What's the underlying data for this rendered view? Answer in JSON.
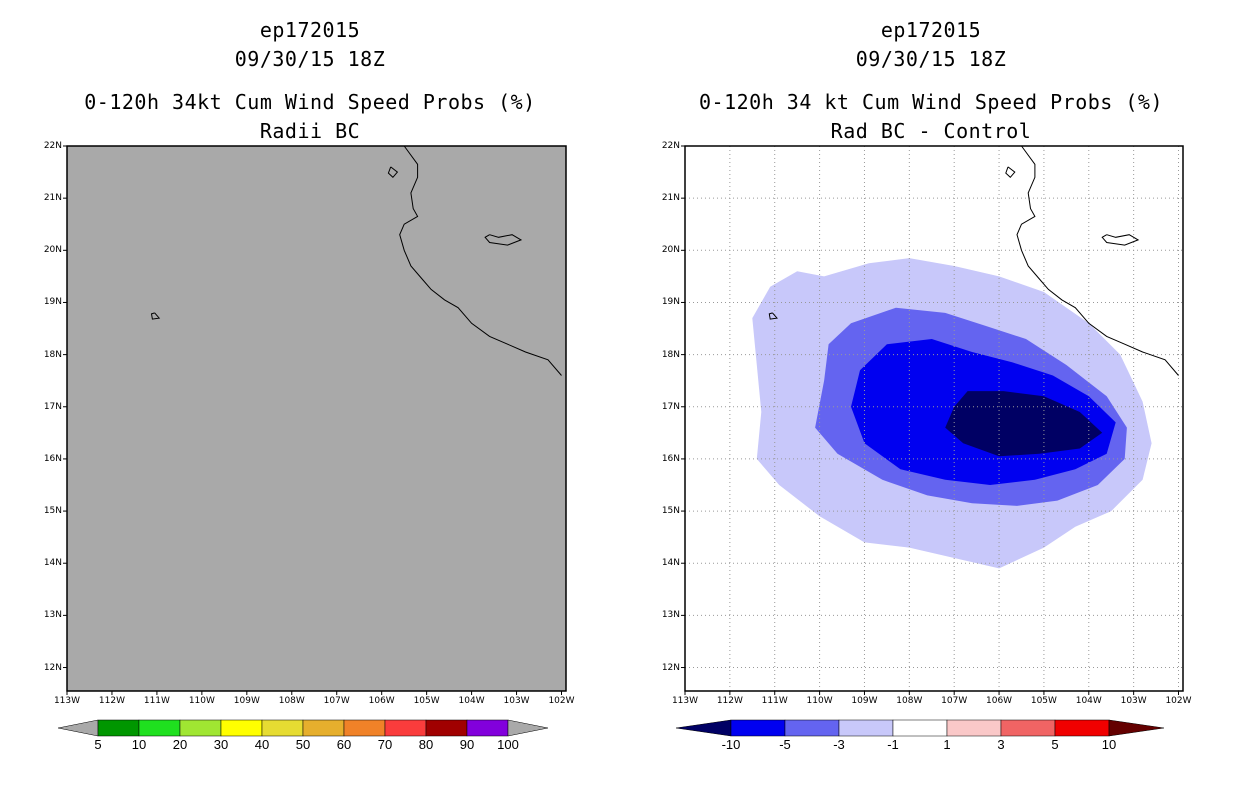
{
  "left_panel": {
    "title_line1": "ep172015",
    "title_line2": "09/30/15 18Z",
    "title_line3": "0-120h 34kt Cum Wind Speed Probs (%)",
    "title_line4": "Radii BC",
    "fill_color": "#a9a9a9",
    "colorbar": {
      "colors": [
        "#a9a9a9",
        "#009600",
        "#1fe01f",
        "#a0e632",
        "#ffff00",
        "#e6dc32",
        "#e6af2d",
        "#f08228",
        "#fa3c3c",
        "#a00000",
        "#8200dc",
        "#a9a9a9"
      ],
      "labels": [
        "5",
        "10",
        "20",
        "30",
        "40",
        "50",
        "60",
        "70",
        "80",
        "90",
        "100"
      ]
    }
  },
  "right_panel": {
    "title_line1": "ep172015",
    "title_line2": "09/30/15 18Z",
    "title_line3": "0-120h 34 kt Cum Wind Speed Probs (%)",
    "title_line4": "Rad BC - Control",
    "colorbar": {
      "colors": [
        "#000064",
        "#0000f0",
        "#6464f0",
        "#c8c8fa",
        "#ffffff",
        "#fac8c8",
        "#f06464",
        "#f00000",
        "#640000"
      ],
      "labels": [
        "-10",
        "-5",
        "-3",
        "-1",
        "1",
        "3",
        "5",
        "10"
      ]
    }
  },
  "axes": {
    "lat_labels": [
      "22N",
      "21N",
      "20N",
      "19N",
      "18N",
      "17N",
      "16N",
      "15N",
      "14N",
      "13N",
      "12N"
    ],
    "lon_labels": [
      "113W",
      "112W",
      "111W",
      "110W",
      "109W",
      "108W",
      "107W",
      "106W",
      "105W",
      "104W",
      "103W",
      "102W"
    ]
  },
  "map_data": {
    "lon_range": [
      -113,
      -101.9
    ],
    "lat_range": [
      11.55,
      22
    ],
    "coastline": [
      [
        -102,
        17.6
      ],
      [
        -102.3,
        17.9
      ],
      [
        -102.8,
        18.05
      ],
      [
        -103.2,
        18.2
      ],
      [
        -103.6,
        18.35
      ],
      [
        -104.0,
        18.6
      ],
      [
        -104.3,
        18.9
      ],
      [
        -104.6,
        19.05
      ],
      [
        -104.9,
        19.25
      ],
      [
        -105.1,
        19.45
      ],
      [
        -105.35,
        19.7
      ],
      [
        -105.5,
        20.0
      ],
      [
        -105.6,
        20.3
      ],
      [
        -105.5,
        20.5
      ],
      [
        -105.2,
        20.65
      ],
      [
        -105.3,
        20.8
      ],
      [
        -105.35,
        21.1
      ],
      [
        -105.2,
        21.4
      ],
      [
        -105.2,
        21.65
      ],
      [
        -105.5,
        22.0
      ]
    ],
    "islands": [
      [
        [
          -111.05,
          18.8
        ],
        [
          -110.95,
          18.7
        ],
        [
          -111.1,
          18.68
        ],
        [
          -111.12,
          18.78
        ],
        [
          -111.05,
          18.8
        ]
      ],
      [
        [
          -105.8,
          21.6
        ],
        [
          -105.65,
          21.5
        ],
        [
          -105.75,
          21.4
        ],
        [
          -105.85,
          21.48
        ],
        [
          -105.8,
          21.6
        ]
      ],
      [
        [
          -103.6,
          20.3
        ],
        [
          -103.4,
          20.25
        ],
        [
          -103.1,
          20.3
        ],
        [
          -102.9,
          20.2
        ],
        [
          -103.2,
          20.1
        ],
        [
          -103.6,
          20.15
        ],
        [
          -103.7,
          20.25
        ],
        [
          -103.6,
          20.3
        ]
      ]
    ],
    "contours": [
      {
        "value_class": "-1",
        "color": "#c8c8fa",
        "points": [
          [
            -109.9,
            19.5
          ],
          [
            -108.9,
            19.75
          ],
          [
            -108.0,
            19.85
          ],
          [
            -107.0,
            19.7
          ],
          [
            -106.0,
            19.5
          ],
          [
            -105.0,
            19.2
          ],
          [
            -104.0,
            18.6
          ],
          [
            -103.3,
            18.0
          ],
          [
            -102.8,
            17.1
          ],
          [
            -102.6,
            16.3
          ],
          [
            -102.8,
            15.6
          ],
          [
            -103.5,
            15.0
          ],
          [
            -104.3,
            14.7
          ],
          [
            -105.0,
            14.3
          ],
          [
            -106.0,
            13.9
          ],
          [
            -107.0,
            14.1
          ],
          [
            -108.0,
            14.3
          ],
          [
            -109.0,
            14.4
          ],
          [
            -110.0,
            14.9
          ],
          [
            -110.9,
            15.5
          ],
          [
            -111.4,
            16.0
          ],
          [
            -111.3,
            16.9
          ],
          [
            -111.4,
            17.8
          ],
          [
            -111.5,
            18.7
          ],
          [
            -111.1,
            19.3
          ],
          [
            -110.5,
            19.6
          ],
          [
            -109.9,
            19.5
          ]
        ]
      },
      {
        "value_class": "-3",
        "color": "#6464f0",
        "points": [
          [
            -109.3,
            18.6
          ],
          [
            -108.3,
            18.9
          ],
          [
            -107.2,
            18.8
          ],
          [
            -106.3,
            18.55
          ],
          [
            -105.4,
            18.3
          ],
          [
            -104.5,
            17.8
          ],
          [
            -103.6,
            17.2
          ],
          [
            -103.15,
            16.6
          ],
          [
            -103.2,
            16.0
          ],
          [
            -103.8,
            15.5
          ],
          [
            -104.7,
            15.2
          ],
          [
            -105.6,
            15.1
          ],
          [
            -106.6,
            15.15
          ],
          [
            -107.6,
            15.3
          ],
          [
            -108.6,
            15.6
          ],
          [
            -109.6,
            16.1
          ],
          [
            -110.1,
            16.6
          ],
          [
            -109.9,
            17.5
          ],
          [
            -109.8,
            18.2
          ],
          [
            -109.3,
            18.6
          ]
        ]
      },
      {
        "value_class": "-5",
        "color": "#0000f0",
        "points": [
          [
            -108.5,
            18.2
          ],
          [
            -107.5,
            18.3
          ],
          [
            -106.6,
            18.05
          ],
          [
            -105.7,
            17.85
          ],
          [
            -104.8,
            17.6
          ],
          [
            -104.0,
            17.2
          ],
          [
            -103.4,
            16.7
          ],
          [
            -103.6,
            16.1
          ],
          [
            -104.3,
            15.8
          ],
          [
            -105.2,
            15.6
          ],
          [
            -106.2,
            15.5
          ],
          [
            -107.2,
            15.6
          ],
          [
            -108.2,
            15.8
          ],
          [
            -109.0,
            16.3
          ],
          [
            -109.3,
            17.0
          ],
          [
            -109.1,
            17.7
          ],
          [
            -108.5,
            18.2
          ]
        ]
      },
      {
        "value_class": "-10",
        "color": "#000064",
        "points": [
          [
            -106.7,
            17.3
          ],
          [
            -105.9,
            17.3
          ],
          [
            -105.0,
            17.2
          ],
          [
            -104.2,
            16.9
          ],
          [
            -103.7,
            16.5
          ],
          [
            -104.2,
            16.2
          ],
          [
            -105.1,
            16.1
          ],
          [
            -106.0,
            16.05
          ],
          [
            -106.8,
            16.3
          ],
          [
            -107.2,
            16.6
          ],
          [
            -107.0,
            17.0
          ],
          [
            -106.7,
            17.3
          ]
        ]
      }
    ]
  }
}
